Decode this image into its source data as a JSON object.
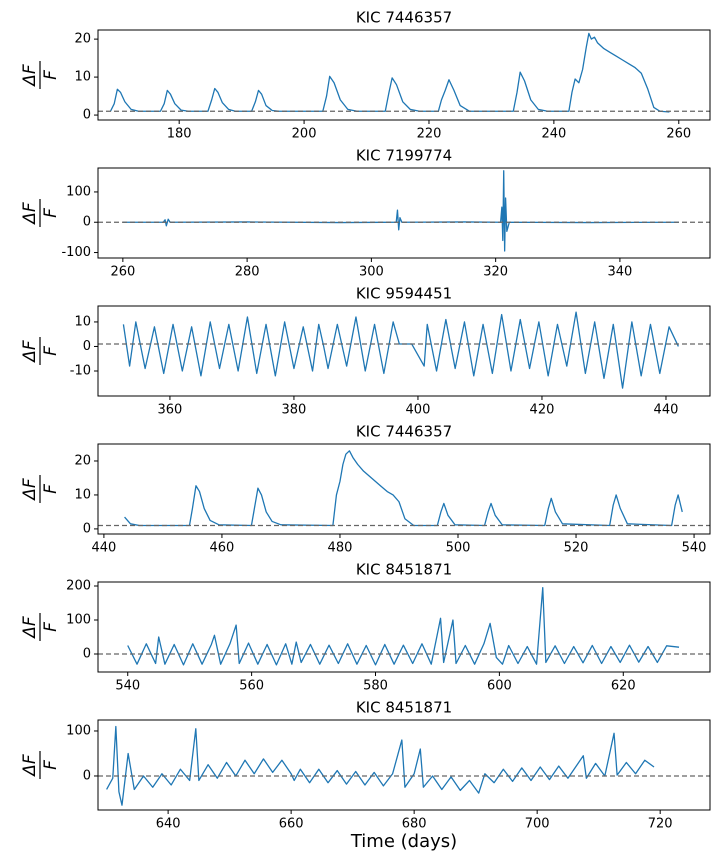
{
  "chart_data": [
    {
      "type": "line",
      "title": "KIC 7446357",
      "ylabel_numerator": "ΔF",
      "ylabel_denominator": "F",
      "xlim": [
        167,
        265
      ],
      "xticks": [
        180,
        200,
        220,
        240,
        260
      ],
      "ylim": [
        -1.3,
        22.4
      ],
      "yticks": [
        0,
        10,
        20
      ],
      "hline": 1,
      "series": [
        {
          "color": "#1f77b4",
          "x": [
            169,
            169.6,
            170.1,
            170.6,
            171.3,
            172.3,
            173.5,
            177,
            177.6,
            178.1,
            178.6,
            179.3,
            180.3,
            181.5,
            184.6,
            185.2,
            185.7,
            186.2,
            186.9,
            187.9,
            189,
            191.6,
            192.2,
            192.7,
            193.2,
            193.9,
            194.9,
            196,
            203,
            203.6,
            204.1,
            204.8,
            205.8,
            207,
            208.5,
            213,
            213.6,
            214.1,
            214.8,
            215.8,
            217,
            218.5,
            221.5,
            222,
            222.6,
            223.2,
            224,
            225,
            226.5,
            233.5,
            234.1,
            234.6,
            235.3,
            236.3,
            237.5,
            239,
            242.4,
            242.9,
            243.4,
            244,
            244.6,
            245.2,
            245.6,
            246,
            246.5,
            247,
            248,
            249,
            250,
            251,
            252,
            253,
            254,
            255,
            256,
            257,
            258.5
          ],
          "values": [
            1,
            3,
            6.8,
            6,
            3.5,
            1.5,
            1,
            1,
            3,
            6.5,
            5.5,
            3,
            1.3,
            1,
            1,
            4,
            7,
            6,
            3.3,
            1.5,
            1,
            1,
            3.5,
            6.5,
            5.5,
            2.5,
            1.2,
            1,
            1,
            5,
            10.2,
            8.5,
            4,
            1.5,
            1,
            1,
            6,
            9.8,
            8,
            3.5,
            1.5,
            1,
            1,
            4,
            6.5,
            9.3,
            6.5,
            2.5,
            1,
            1,
            6,
            11.3,
            9,
            4,
            1.5,
            1,
            1,
            6,
            9.5,
            8.5,
            12,
            18,
            21.5,
            20,
            20.5,
            19,
            17.5,
            16.5,
            15.5,
            14.5,
            13.5,
            12.5,
            11,
            7,
            2,
            1,
            0.8
          ]
        }
      ]
    },
    {
      "type": "line",
      "title": "KIC 7199774",
      "ylabel_numerator": "ΔF",
      "ylabel_denominator": "F",
      "xlim": [
        256,
        354.5
      ],
      "xticks": [
        260,
        280,
        300,
        320,
        340
      ],
      "ylim": [
        -118,
        179
      ],
      "yticks": [
        -100,
        0,
        100
      ],
      "hline": 0,
      "series": [
        {
          "color": "#1f77b4",
          "x": [
            260,
            266.5,
            266.8,
            267.0,
            267.3,
            267.6,
            280,
            295,
            304,
            304.2,
            304.4,
            304.6,
            304.9,
            315,
            320.8,
            321.0,
            321.15,
            321.3,
            321.45,
            321.6,
            321.8,
            322.2,
            335,
            349.5
          ],
          "values": [
            0,
            0,
            8,
            -12,
            10,
            0,
            1,
            -1,
            0,
            40,
            -25,
            15,
            0,
            1,
            0,
            50,
            -60,
            170,
            -95,
            80,
            -30,
            0,
            -1,
            0
          ]
        }
      ]
    },
    {
      "type": "line",
      "title": "KIC 9594451",
      "ylabel_numerator": "ΔF",
      "ylabel_denominator": "F",
      "xlim": [
        348.4,
        447.1
      ],
      "xticks": [
        360,
        380,
        400,
        420,
        440
      ],
      "ylim": [
        -20.2,
        16.5
      ],
      "yticks": [
        -10,
        0,
        10
      ],
      "hline": 1,
      "series": [
        {
          "color": "#1f77b4",
          "x": [
            352.5,
            353.5,
            354.5,
            356,
            357.5,
            359,
            360.5,
            362,
            363.5,
            365,
            366.5,
            368,
            369.5,
            371,
            372.5,
            374,
            375.5,
            377,
            378.5,
            380,
            381.5,
            383,
            384,
            384.8,
            385.5,
            387,
            388.5,
            390,
            391.5,
            393,
            394.5,
            396,
            397,
            399,
            401,
            401.5,
            403,
            404.5,
            406,
            407.5,
            409,
            410.5,
            412,
            413.5,
            415,
            416.5,
            418,
            419.5,
            421,
            422.5,
            424,
            425.5,
            427,
            428.5,
            430,
            431.5,
            433,
            434.5,
            436,
            437.5,
            439,
            440.5,
            442
          ],
          "values": [
            9,
            -8,
            10,
            -9,
            8,
            -11,
            9,
            -10,
            8,
            -12,
            10,
            -9,
            9,
            -10,
            12,
            -11,
            9,
            -12,
            10,
            -9,
            8,
            -10,
            9,
            0,
            -9,
            9,
            -8,
            12,
            -10,
            9,
            -11,
            10,
            1,
            1,
            -8,
            9,
            -10,
            11,
            -9,
            10,
            -12,
            9,
            -11,
            13,
            -10,
            11,
            -9,
            10,
            -12,
            9,
            -8,
            14,
            -11,
            10,
            -13,
            9,
            -17,
            10,
            -12,
            9,
            -11,
            8,
            0
          ]
        }
      ]
    },
    {
      "type": "line",
      "title": "KIC 7446357",
      "ylabel_numerator": "ΔF",
      "ylabel_denominator": "F",
      "xlim": [
        439,
        542.7
      ],
      "xticks": [
        440,
        460,
        480,
        500,
        520,
        540
      ],
      "ylim": [
        -1.5,
        25
      ],
      "yticks": [
        0,
        10,
        20
      ],
      "hline": 1,
      "series": [
        {
          "color": "#1f77b4",
          "x": [
            443.5,
            444.5,
            446,
            454.5,
            455,
            455.6,
            456.2,
            457,
            458,
            459.5,
            465,
            465.5,
            466.1,
            466.7,
            467.5,
            468.5,
            470,
            478.8,
            479.4,
            480,
            480.5,
            481,
            481.6,
            482.2,
            483,
            484,
            485,
            486,
            487,
            488,
            489,
            490,
            491,
            492.5,
            496.5,
            497.1,
            497.6,
            498.3,
            499.5,
            504.5,
            505.1,
            505.6,
            506.3,
            507.5,
            514.7,
            515.3,
            515.8,
            516.5,
            517.7,
            525.7,
            526.3,
            526.8,
            527.5,
            528.7,
            536.2,
            536.8,
            537.3,
            538
          ],
          "values": [
            3.5,
            1.5,
            1,
            1,
            6,
            12.7,
            11,
            6,
            2.5,
            1.2,
            1,
            6,
            12,
            10,
            5,
            2.2,
            1.2,
            1,
            10,
            14,
            19,
            22,
            23,
            21,
            19,
            17,
            15.5,
            14,
            12.5,
            11,
            10,
            8,
            3,
            1,
            1,
            5,
            7.5,
            4,
            1.2,
            1,
            5,
            7.5,
            4,
            1.2,
            1,
            6,
            9,
            5,
            1.5,
            1,
            7,
            10,
            6,
            1.5,
            1,
            7,
            10,
            5
          ]
        }
      ]
    },
    {
      "type": "line",
      "title": "KIC 8451871",
      "ylabel_numerator": "ΔF",
      "ylabel_denominator": "F",
      "xlim": [
        535.2,
        634
      ],
      "xticks": [
        540,
        560,
        580,
        600,
        620
      ],
      "ylim": [
        -53,
        211.8
      ],
      "yticks": [
        0,
        100,
        200
      ],
      "hline": 0,
      "series": [
        {
          "color": "#1f77b4",
          "x": [
            540,
            541.5,
            543,
            544.5,
            545,
            546,
            547.5,
            549,
            550.5,
            552,
            553.5,
            554,
            555,
            556.5,
            557.5,
            558,
            559.5,
            561,
            562.5,
            564,
            565.5,
            566.5,
            567.2,
            568,
            569.5,
            571,
            572.5,
            574,
            575.5,
            577,
            578.5,
            580,
            581.5,
            583,
            584.5,
            586,
            587.5,
            589,
            590.5,
            591,
            592.5,
            593,
            594.5,
            596,
            597.5,
            598.5,
            599.5,
            600.5,
            601.5,
            603,
            604.5,
            606,
            607,
            607.5,
            609,
            610.5,
            612,
            613.5,
            615,
            616.5,
            618,
            619.5,
            621,
            622.5,
            624,
            625.5,
            627,
            629
          ],
          "values": [
            25,
            -30,
            30,
            -28,
            50,
            -30,
            28,
            -32,
            30,
            -30,
            28,
            55,
            -30,
            30,
            85,
            -28,
            32,
            -30,
            28,
            -32,
            30,
            -30,
            35,
            -25,
            28,
            -30,
            26,
            -28,
            30,
            -30,
            25,
            -32,
            28,
            -30,
            26,
            -28,
            30,
            -30,
            105,
            -25,
            100,
            -28,
            25,
            -30,
            30,
            90,
            -10,
            -30,
            25,
            -28,
            22,
            -30,
            195,
            -25,
            24,
            -28,
            22,
            -26,
            25,
            -28,
            22,
            -25,
            26,
            -24,
            22,
            -25,
            24,
            20
          ]
        }
      ]
    },
    {
      "type": "line",
      "title": "KIC 8451871",
      "ylabel_numerator": "ΔF",
      "ylabel_denominator": "F",
      "xlabel": "Time (days)",
      "xlim": [
        628.6,
        728.1
      ],
      "xticks": [
        640,
        660,
        680,
        700,
        720
      ],
      "ylim": [
        -75.6,
        124.4
      ],
      "yticks": [
        0,
        100
      ],
      "hline": 0,
      "series": [
        {
          "color": "#1f77b4",
          "x": [
            630,
            631,
            631.5,
            632,
            632.5,
            633.5,
            634.5,
            636,
            637.5,
            639,
            640.5,
            642,
            643.5,
            644.5,
            645,
            646.5,
            648,
            649.5,
            651,
            652.5,
            654,
            655.5,
            657,
            658.5,
            660,
            660.5,
            661.5,
            663,
            664.5,
            666,
            667.5,
            669,
            670.5,
            672,
            673.5,
            675,
            676.5,
            678,
            678.5,
            680,
            681,
            681.5,
            683,
            684.5,
            686,
            687.5,
            689,
            690.5,
            691.5,
            693,
            694.5,
            696,
            697.5,
            699,
            700.5,
            702,
            703.5,
            705,
            706.5,
            707.5,
            708,
            709.5,
            711,
            712.5,
            713,
            714.5,
            716,
            717.5,
            719
          ],
          "values": [
            -30,
            -5,
            110,
            -35,
            -65,
            50,
            -30,
            0,
            -25,
            5,
            -20,
            15,
            -10,
            105,
            -10,
            25,
            -5,
            30,
            0,
            35,
            5,
            38,
            8,
            35,
            5,
            -10,
            15,
            -15,
            15,
            -15,
            12,
            -18,
            10,
            -20,
            8,
            -22,
            5,
            80,
            -25,
            5,
            60,
            -25,
            0,
            -30,
            -2,
            -32,
            -10,
            -38,
            5,
            -15,
            15,
            -12,
            18,
            -10,
            20,
            -8,
            22,
            -5,
            25,
            45,
            -5,
            28,
            0,
            95,
            2,
            30,
            5,
            35,
            20
          ]
        }
      ]
    }
  ]
}
